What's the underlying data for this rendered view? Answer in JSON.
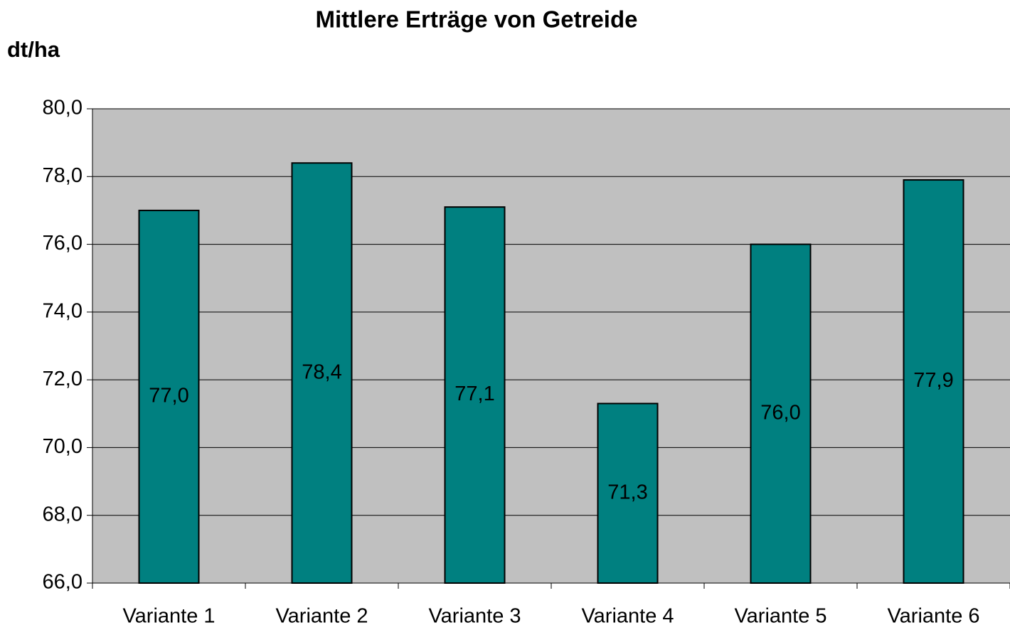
{
  "chart_data": {
    "type": "bar",
    "title": "Mittlere Erträge von Getreide",
    "y_label": "dt/ha",
    "categories": [
      "Variante 1",
      "Variante 2",
      "Variante 3",
      "Variante 4",
      "Variante 5",
      "Variante 6"
    ],
    "values": [
      77.0,
      78.4,
      77.1,
      71.3,
      76.0,
      77.9
    ],
    "value_labels": [
      "77,0",
      "78,4",
      "77,1",
      "71,3",
      "76,0",
      "77,9"
    ],
    "color": "#008080",
    "background": "#c0c0c0",
    "ylim": [
      66,
      80
    ],
    "yticks": [
      {
        "value": 66,
        "label": "66,0"
      },
      {
        "value": 68,
        "label": "68,0"
      },
      {
        "value": 70,
        "label": "70,0"
      },
      {
        "value": 72,
        "label": "72,0"
      },
      {
        "value": 74,
        "label": "74,0"
      },
      {
        "value": 76,
        "label": "76,0"
      },
      {
        "value": 78,
        "label": "78,0"
      },
      {
        "value": 80,
        "label": "80,0"
      }
    ],
    "grid": true
  }
}
